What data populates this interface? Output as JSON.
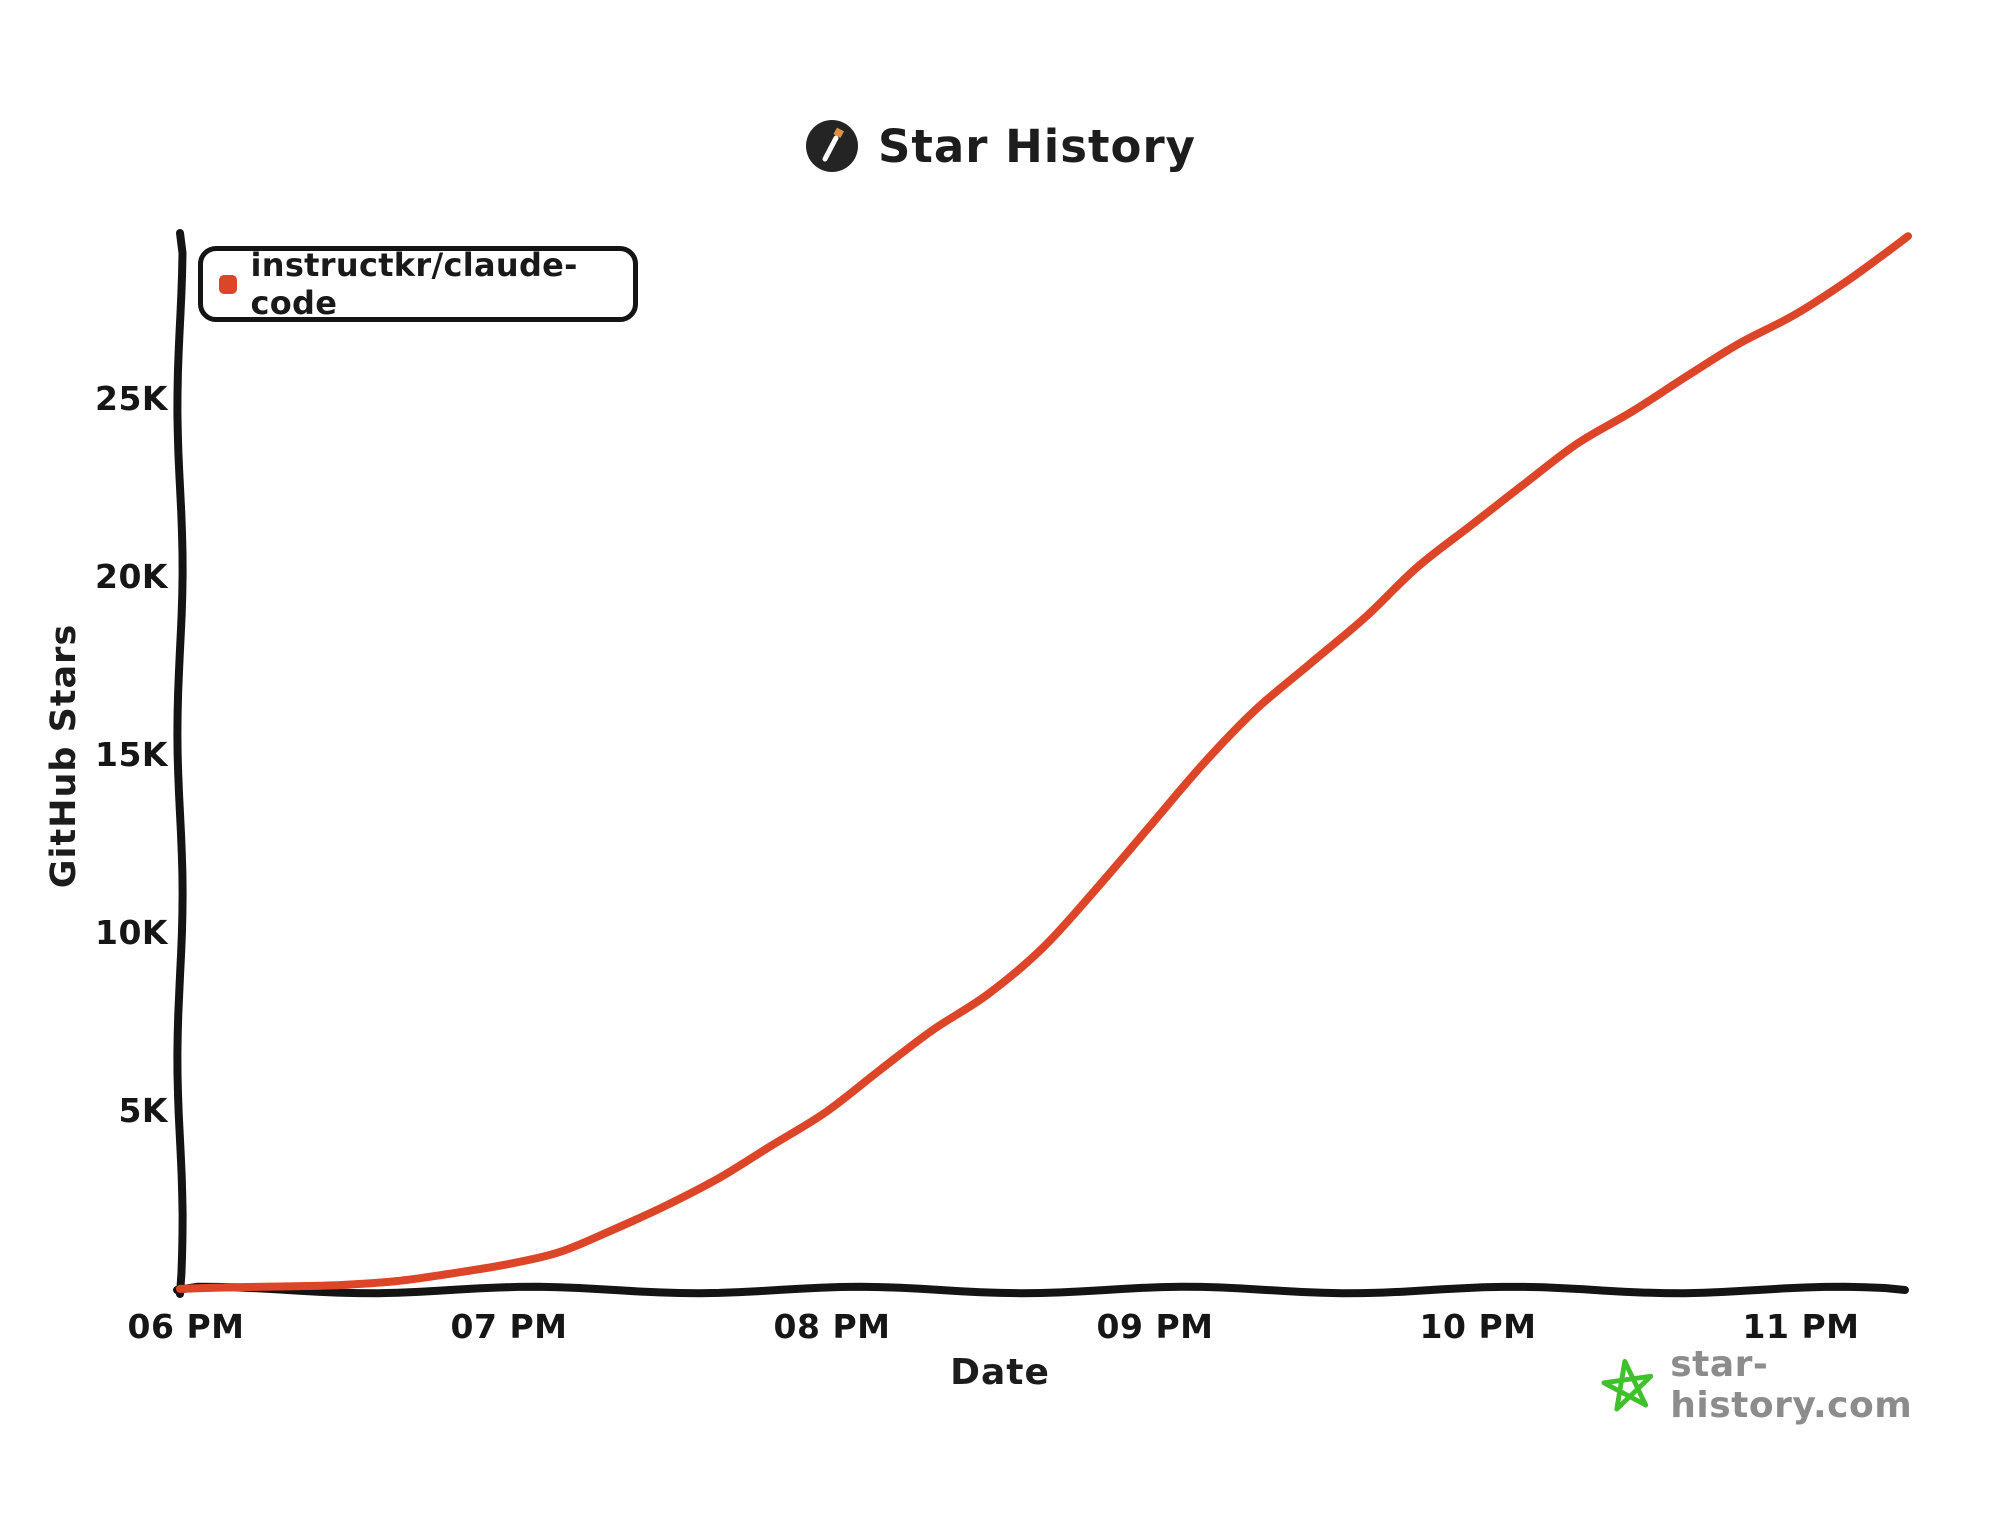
{
  "header": {
    "title": "Star History"
  },
  "legend": {
    "label": "instructkr/claude-code",
    "swatch_color": "#dd4528"
  },
  "axes": {
    "y_label": "GitHub Stars",
    "x_label": "Date"
  },
  "watermark": {
    "text": "star-history.com",
    "star_color": "#3fc12c",
    "text_color": "#8c8c8c"
  },
  "colors": {
    "line": "#dd4528",
    "axis": "#141414",
    "background": "#ffffff"
  },
  "chart_data": {
    "type": "line",
    "title": "Star History",
    "xlabel": "Date",
    "ylabel": "GitHub Stars",
    "grid": false,
    "legend_position": "top-left",
    "x_unit": "hours after 06 PM (same day)",
    "xlim_hours": [
      0,
      5.35
    ],
    "ylim": [
      0,
      29600
    ],
    "x_ticks": [
      {
        "label": "06 PM",
        "hour": 0
      },
      {
        "label": "07 PM",
        "hour": 1
      },
      {
        "label": "08 PM",
        "hour": 2
      },
      {
        "label": "09 PM",
        "hour": 3
      },
      {
        "label": "10 PM",
        "hour": 4
      },
      {
        "label": "11 PM",
        "hour": 5
      }
    ],
    "y_ticks": [
      {
        "label": "5K",
        "value": 5000
      },
      {
        "label": "10K",
        "value": 10000
      },
      {
        "label": "15K",
        "value": 15000
      },
      {
        "label": "20K",
        "value": 20000
      },
      {
        "label": "25K",
        "value": 25000
      }
    ],
    "series": [
      {
        "name": "instructkr/claude-code",
        "color": "#dd4528",
        "points": [
          {
            "t": 0.0,
            "stars": 30
          },
          {
            "t": 0.17,
            "stars": 80
          },
          {
            "t": 0.33,
            "stars": 100
          },
          {
            "t": 0.5,
            "stars": 140
          },
          {
            "t": 0.67,
            "stars": 250
          },
          {
            "t": 0.83,
            "stars": 450
          },
          {
            "t": 1.0,
            "stars": 700
          },
          {
            "t": 1.17,
            "stars": 1050
          },
          {
            "t": 1.33,
            "stars": 1650
          },
          {
            "t": 1.5,
            "stars": 2350
          },
          {
            "t": 1.67,
            "stars": 3150
          },
          {
            "t": 1.83,
            "stars": 4050
          },
          {
            "t": 2.0,
            "stars": 5000
          },
          {
            "t": 2.17,
            "stars": 6200
          },
          {
            "t": 2.33,
            "stars": 7300
          },
          {
            "t": 2.5,
            "stars": 8300
          },
          {
            "t": 2.67,
            "stars": 9600
          },
          {
            "t": 2.83,
            "stars": 11200
          },
          {
            "t": 3.0,
            "stars": 13000
          },
          {
            "t": 3.17,
            "stars": 14800
          },
          {
            "t": 3.33,
            "stars": 16300
          },
          {
            "t": 3.5,
            "stars": 17600
          },
          {
            "t": 3.67,
            "stars": 18900
          },
          {
            "t": 3.83,
            "stars": 20300
          },
          {
            "t": 4.0,
            "stars": 21500
          },
          {
            "t": 4.17,
            "stars": 22700
          },
          {
            "t": 4.33,
            "stars": 23800
          },
          {
            "t": 4.5,
            "stars": 24700
          },
          {
            "t": 4.67,
            "stars": 25700
          },
          {
            "t": 4.83,
            "stars": 26600
          },
          {
            "t": 5.0,
            "stars": 27400
          },
          {
            "t": 5.17,
            "stars": 28400
          },
          {
            "t": 5.35,
            "stars": 29600
          }
        ]
      }
    ]
  }
}
